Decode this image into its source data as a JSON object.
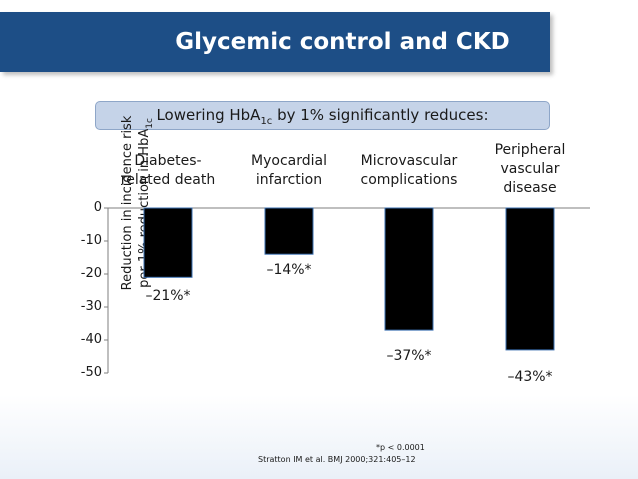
{
  "slide": {
    "title": "Glycemic control and CKD",
    "subtitle_pre": "Lowering HbA",
    "subtitle_sub": "1c",
    "subtitle_post": " by 1% significantly reduces:",
    "footnote": "*p < 0.0001",
    "citation": "Stratton IM et al. BMJ 2000;321:405–12"
  },
  "colors": {
    "title_bar": "#1d4e86",
    "subtitle_box": "#c5d3e8",
    "bars": "#000000",
    "bar_highlight": "#3a6fb0"
  },
  "chart_data": {
    "type": "bar",
    "title": "Lowering HbA1c by 1% significantly reduces:",
    "ylabel_line1": "Reduction in incidence risk",
    "ylabel_line2_pre": "per 1% reduction in HbA",
    "ylabel_line2_sub": "1c",
    "xlabel": "",
    "categories": [
      "Diabetes-\nrelated death",
      "Myocardial\ninfarction",
      "Microvascular\ncomplications",
      "Peripheral\nvascular\ndisease"
    ],
    "values": [
      -21,
      -14,
      -37,
      -43
    ],
    "value_labels": [
      "–21%*",
      "–14%*",
      "–37%*",
      "–43%*"
    ],
    "yticks": [
      0,
      -10,
      -20,
      -30,
      -40,
      -50
    ],
    "ytick_labels": [
      "0",
      "-10",
      "-20",
      "-30",
      "-40",
      "-50"
    ],
    "ylim": [
      -50,
      0
    ],
    "grid": false
  }
}
